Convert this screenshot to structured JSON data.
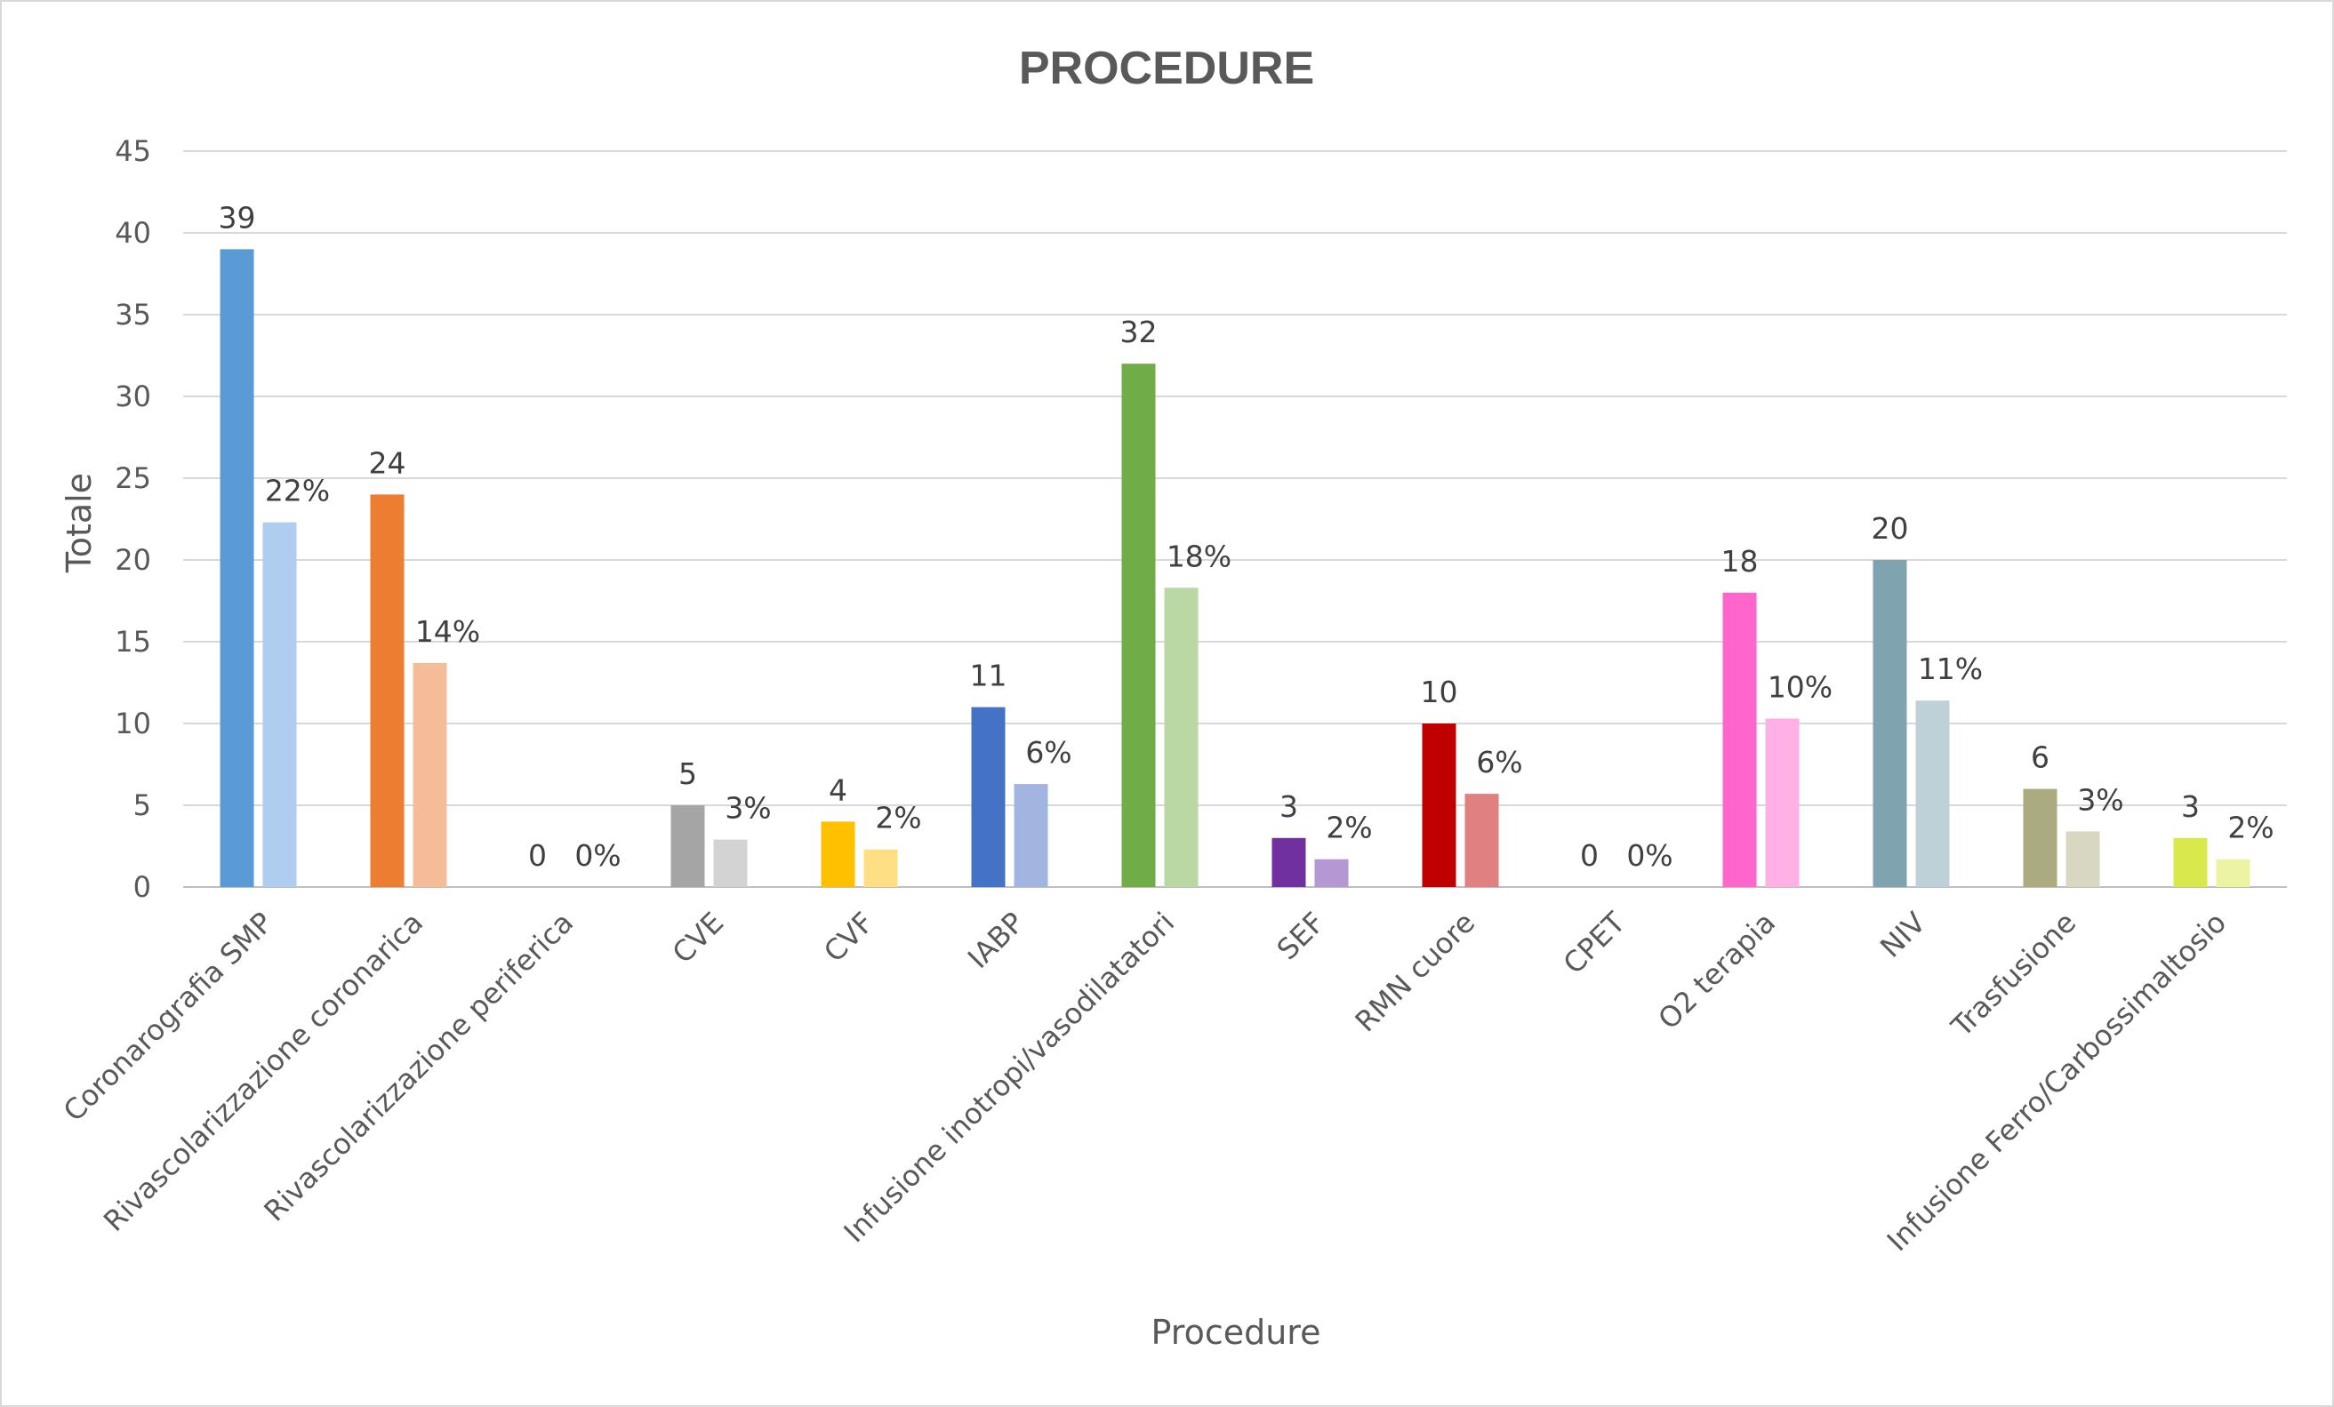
{
  "chart_data": {
    "type": "bar",
    "title": "PROCEDURE",
    "xlabel": "Procedure",
    "ylabel": "Totale",
    "ylim": [
      0,
      45
    ],
    "yticks": [
      0,
      5,
      10,
      15,
      20,
      25,
      30,
      35,
      40,
      45
    ],
    "grid": true,
    "legend": "none",
    "categories": [
      "Coronarografia SMP",
      "Rivascolarizzazione coronarica",
      "Rivascolarizzazione periferica",
      "CVE",
      "CVF",
      "IABP",
      "Infusione inotropi/vasodilatatori",
      "SEF",
      "RMN cuore",
      "CPET",
      "O2 terapia",
      "NIV",
      "Trasfusione",
      "Infusione Ferro/Carbossimaltosio"
    ],
    "series": [
      {
        "values": [
          39,
          24,
          0,
          5,
          4,
          11,
          32,
          3,
          10,
          0,
          18,
          20,
          6,
          3
        ],
        "labels": [
          "39",
          "24",
          "0",
          "5",
          "4",
          "11",
          "32",
          "3",
          "10",
          "0",
          "18",
          "20",
          "6",
          "3"
        ]
      },
      {
        "values": [
          22.3,
          13.7,
          0,
          2.9,
          2.3,
          6.3,
          18.3,
          1.7,
          5.7,
          0,
          10.3,
          11.4,
          3.4,
          1.7
        ],
        "labels": [
          "22%",
          "14%",
          "0%",
          "3%",
          "2%",
          "6%",
          "18%",
          "2%",
          "6%",
          "0%",
          "10%",
          "11%",
          "3%",
          "2%"
        ]
      }
    ],
    "colors": {
      "primary": [
        "#5b9bd5",
        "#ed7d31",
        "#a5a5a5",
        "#a5a5a5",
        "#ffc000",
        "#4472c4",
        "#70ad47",
        "#7030a0",
        "#c00000",
        "#a5a5a5",
        "#ff66cc",
        "#7fa3af",
        "#acaa7f",
        "#d9e84a"
      ],
      "secondary": [
        "#afcdee",
        "#f5bc98",
        "#d3d3d3",
        "#d3d3d3",
        "#ffdf84",
        "#a1b5e0",
        "#b9d8a4",
        "#b597d4",
        "#e08080",
        "#d3d3d3",
        "#ffb0e4",
        "#bfd1d8",
        "#d7d7c2",
        "#ecf3a2"
      ],
      "grid": "#d9d9d9",
      "text": "#595959"
    }
  }
}
